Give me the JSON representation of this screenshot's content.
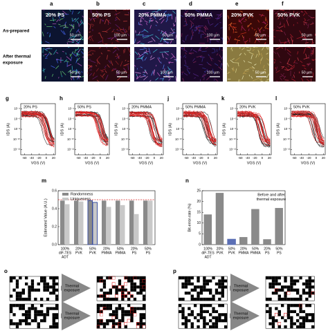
{
  "micrographs": {
    "row_labels": [
      [
        "As-prepared"
      ],
      [
        "After thermal",
        "exposure"
      ]
    ],
    "panels": [
      {
        "letter": "a",
        "title": "20% PS",
        "scale_bars": [
          "50 µm",
          "50 µm"
        ]
      },
      {
        "letter": "b",
        "title": "50% PS",
        "scale_bars": [
          "100 µm",
          "50 µm"
        ]
      },
      {
        "letter": "c",
        "title": "20% PMMA",
        "scale_bars": [
          "50 µm",
          "100 µm"
        ]
      },
      {
        "letter": "d",
        "title": "50% PMMA",
        "scale_bars": [
          "100 µm",
          "100 µm"
        ]
      },
      {
        "letter": "e",
        "title": "20% PVK",
        "scale_bars": [
          "50 µm",
          "50 µm"
        ]
      },
      {
        "letter": "f",
        "title": "50% PVK",
        "scale_bars": [
          "50 µm",
          "50 µm"
        ]
      }
    ]
  },
  "transfer": {
    "x_label": "VGS (V)",
    "y_label": "IDS (A)",
    "xlim": [
      -70,
      25
    ],
    "xticks": [
      -60,
      -40,
      -20,
      0,
      20
    ],
    "ylim": [
      1e-13,
      0.001
    ],
    "log_y": true,
    "yticks": [
      {
        "value": 0.0001,
        "label": "10⁻⁴"
      },
      {
        "value": 1e-06,
        "label": "10⁻⁶"
      },
      {
        "value": 1e-08,
        "label": "10⁻⁸"
      },
      {
        "value": 1e-10,
        "label": "10⁻¹⁰"
      },
      {
        "value": 1e-12,
        "label": "10⁻¹²"
      }
    ],
    "panels": [
      {
        "letter": "g",
        "title": "20% PS"
      },
      {
        "letter": "h",
        "title": "50% PS"
      },
      {
        "letter": "i",
        "title": "20% PMMA"
      },
      {
        "letter": "j",
        "title": "50% PMMA"
      },
      {
        "letter": "k",
        "title": "20% PVK"
      },
      {
        "letter": "l",
        "title": "50% PVK"
      }
    ]
  },
  "chart_data": [
    {
      "type": "bar",
      "letter": "m",
      "y_label": "Estimated Value (A.U.)",
      "categories": [
        [
          "100%",
          "diF-TES",
          "ADT"
        ],
        [
          "20%",
          "PVK"
        ],
        [
          "50%",
          "PVK"
        ],
        [
          "20%",
          "PMMA"
        ],
        [
          "50%",
          "PMMA"
        ],
        [
          "20%",
          "PS"
        ],
        [
          "50%",
          "PS"
        ]
      ],
      "series": [
        {
          "name": "Randomness",
          "color": "#8a8a8a",
          "values": [
            0.49,
            0.49,
            0.49,
            0.49,
            0.49,
            0.49,
            0.49
          ]
        },
        {
          "name": "Uniqueness",
          "color": "#c8c8c8",
          "values": [
            0.45,
            0.48,
            0.47,
            0.42,
            0.44,
            0.34,
            0.49
          ]
        }
      ],
      "ylim": [
        0,
        0.6
      ],
      "yticks": [
        {
          "value": 0,
          "label": "0.0"
        },
        {
          "value": 0.2,
          "label": "0.2"
        },
        {
          "value": 0.4,
          "label": "0.4"
        },
        {
          "value": 0.6,
          "label": "0.6"
        }
      ],
      "reference_line": 0.5,
      "reference_color": "#d62728",
      "highlight": {
        "index": 2,
        "color": "#3b4fa0"
      },
      "legend": "upper left"
    },
    {
      "type": "bar",
      "letter": "n",
      "y_label": "Bit-error-rate (%)",
      "annotation": [
        "Before and after",
        "thermal exposure"
      ],
      "categories": [
        [
          "100%",
          "diF-TES",
          "ADT"
        ],
        [
          "20%",
          "PVK"
        ],
        [
          "50%",
          "PVK"
        ],
        [
          "20%",
          "PMMA"
        ],
        [
          "50%",
          "PMMA"
        ],
        [
          "20%",
          "PS"
        ],
        [
          "50%",
          "PS"
        ]
      ],
      "series": [
        {
          "name": "Bit-error-rate",
          "color": "#8a8a8a",
          "values": [
            14,
            24,
            2.5,
            3.5,
            16.5,
            2.5,
            17
          ]
        }
      ],
      "ylim": [
        0,
        25
      ],
      "yticks": [
        0,
        5,
        10,
        15,
        20,
        25
      ],
      "highlight": {
        "index": 2,
        "color": "#5b6fb5"
      }
    }
  ],
  "bitmaps": [
    {
      "letter": "o",
      "arrow_label": [
        "Thermal",
        "exposure"
      ]
    },
    {
      "letter": "p",
      "arrow_label": [
        "Thermal",
        "exposure"
      ]
    }
  ]
}
